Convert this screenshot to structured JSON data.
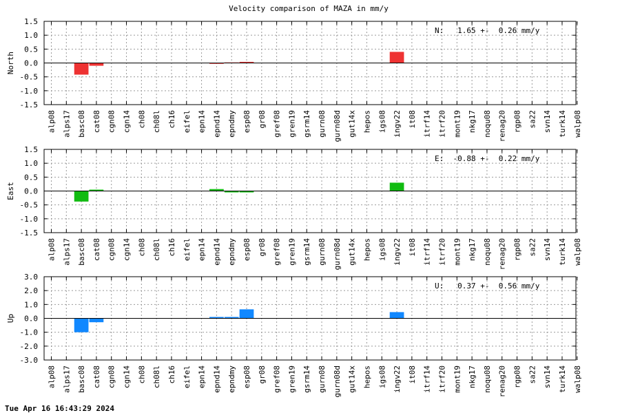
{
  "title": "Velocity comparison of MAZA in mm/y",
  "footer": "Tue Apr 16 16:43:29 2024",
  "chart_data": [
    {
      "type": "bar",
      "ylabel": "North",
      "ylim": [
        -1.5,
        1.5
      ],
      "yticks": [
        "1.5",
        "1.0",
        "0.5",
        "0.0",
        "-0.5",
        "-1.0",
        "-1.5"
      ],
      "grid": true,
      "color": "#ee3333",
      "stat": "N:   1.65 +-  0.26 mm/y",
      "categories": [
        "alp08",
        "alps17",
        "basc08",
        "cat08",
        "cgn08",
        "cgn14",
        "ch08",
        "ch08l",
        "ch16",
        "eifel",
        "epn14",
        "epnd14",
        "epndmy",
        "esp08",
        "gr08",
        "gref08",
        "gren19",
        "gsrm14",
        "gurn08",
        "gurn08d",
        "gut14x",
        "hepos",
        "igs08",
        "ingv22",
        "it08",
        "itrf14",
        "itrf20",
        "mont19",
        "nkg17",
        "noqu08",
        "renag20",
        "rgp08",
        "sa22",
        "svn14",
        "turk14",
        "walp08"
      ],
      "values": [
        0,
        0,
        -0.42,
        -0.1,
        0,
        0,
        0,
        0,
        0,
        0,
        0,
        -0.03,
        0.02,
        0.04,
        0,
        0,
        0,
        0,
        0,
        0,
        0,
        0,
        0,
        0.4,
        0,
        0,
        0,
        0,
        0,
        0,
        0,
        0,
        0,
        0,
        0,
        0
      ]
    },
    {
      "type": "bar",
      "ylabel": "East",
      "ylim": [
        -1.5,
        1.5
      ],
      "yticks": [
        "1.5",
        "1.0",
        "0.5",
        "0.0",
        "-0.5",
        "-1.0",
        "-1.5"
      ],
      "grid": true,
      "color": "#11bb11",
      "stat": "E:  -0.88 +-  0.22 mm/y",
      "categories": [
        "alp08",
        "alps17",
        "basc08",
        "cat08",
        "cgn08",
        "cgn14",
        "ch08",
        "ch08l",
        "ch16",
        "eifel",
        "epn14",
        "epnd14",
        "epndmy",
        "esp08",
        "gr08",
        "gref08",
        "gren19",
        "gsrm14",
        "gurn08",
        "gurn08d",
        "gut14x",
        "hepos",
        "igs08",
        "ingv22",
        "it08",
        "itrf14",
        "itrf20",
        "mont19",
        "nkg17",
        "noqu08",
        "renag20",
        "rgp08",
        "sa22",
        "svn14",
        "turk14",
        "walp08"
      ],
      "values": [
        0,
        0,
        -0.38,
        0.05,
        0,
        0,
        0,
        0,
        0,
        0,
        0,
        0.07,
        -0.05,
        -0.05,
        0,
        0,
        0,
        0,
        0,
        0,
        0,
        0,
        0,
        0.3,
        0,
        0,
        0,
        0,
        0,
        0,
        0,
        0,
        0,
        0,
        0,
        0
      ]
    },
    {
      "type": "bar",
      "ylabel": "Up",
      "ylim": [
        -3.0,
        3.0
      ],
      "yticks": [
        "3.0",
        "2.0",
        "1.0",
        "0.0",
        "-1.0",
        "-2.0",
        "-3.0"
      ],
      "grid": true,
      "color": "#1188ff",
      "stat": "U:   0.37 +-  0.56 mm/y",
      "categories": [
        "alp08",
        "alps17",
        "basc08",
        "cat08",
        "cgn08",
        "cgn14",
        "ch08",
        "ch08l",
        "ch16",
        "eifel",
        "epn14",
        "epnd14",
        "epndmy",
        "esp08",
        "gr08",
        "gref08",
        "gren19",
        "gsrm14",
        "gurn08",
        "gurn08d",
        "gut14x",
        "hepos",
        "igs08",
        "ingv22",
        "it08",
        "itrf14",
        "itrf20",
        "mont19",
        "nkg17",
        "noqu08",
        "renag20",
        "rgp08",
        "sa22",
        "svn14",
        "turk14",
        "walp08"
      ],
      "values": [
        0,
        0,
        -1.0,
        -0.28,
        0,
        0,
        0,
        0,
        0,
        0,
        0,
        0.1,
        0.1,
        0.65,
        0,
        0,
        0,
        0,
        0,
        0,
        0,
        0,
        0,
        0.45,
        0,
        0,
        0,
        0,
        0,
        0,
        0,
        0,
        0,
        0,
        0,
        0
      ]
    }
  ]
}
